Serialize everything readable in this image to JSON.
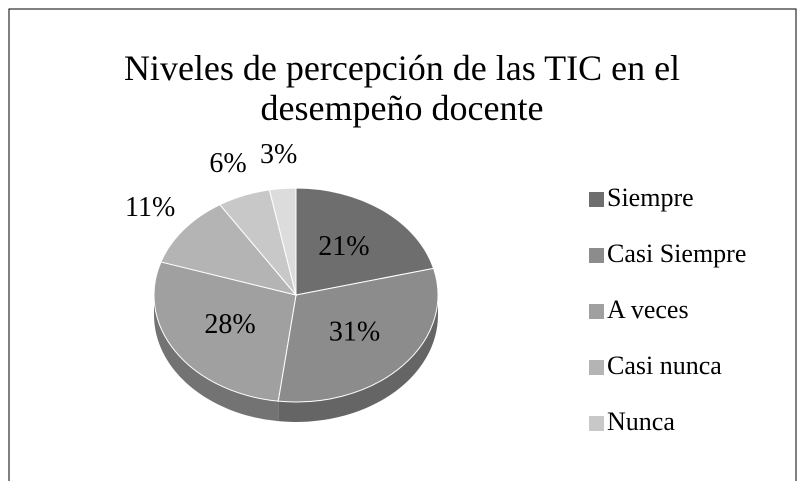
{
  "chart_data": {
    "type": "pie",
    "title": "Niveles de percepción de las TIC en el desempeño docente",
    "categories": [
      "Siempre",
      "Casi Siempre",
      "A veces",
      "Casi nunca",
      "Nunca",
      null
    ],
    "values": [
      21,
      31,
      28,
      11,
      6,
      3
    ],
    "value_labels": [
      "21%",
      "31%",
      "28%",
      "11%",
      "6%",
      "3%"
    ],
    "colors": [
      "#6e6e6e",
      "#8c8c8c",
      "#a0a0a0",
      "#b4b4b4",
      "#c8c8c8",
      "#dcdcdc"
    ],
    "legend": "right"
  }
}
